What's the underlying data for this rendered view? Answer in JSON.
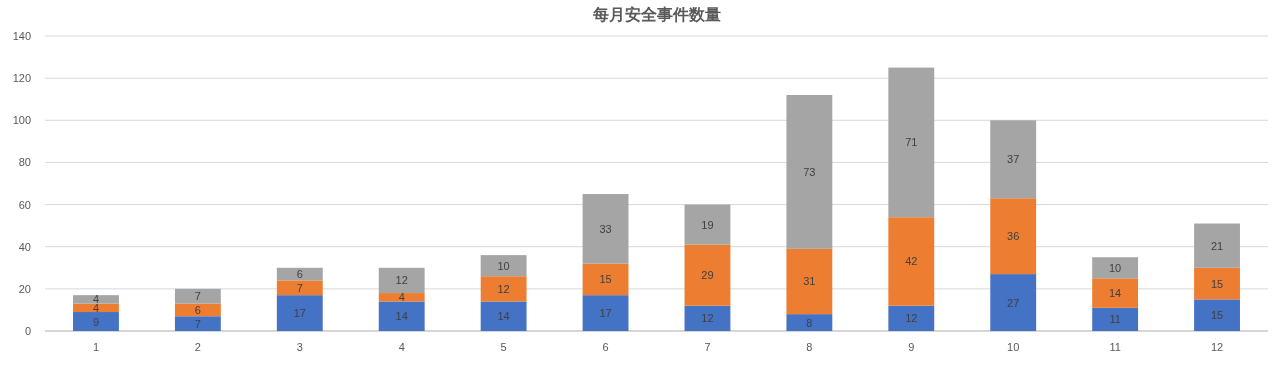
{
  "chart_data": {
    "type": "bar",
    "title": "每月安全事件数量",
    "stacked": true,
    "data_labels": true,
    "grid": "y",
    "categories": [
      "1",
      "2",
      "3",
      "4",
      "5",
      "6",
      "7",
      "8",
      "9",
      "10",
      "11",
      "12"
    ],
    "series": [
      {
        "color": "#4472c4",
        "values": [
          9,
          7,
          17,
          14,
          14,
          17,
          12,
          8,
          12,
          27,
          11,
          15
        ]
      },
      {
        "color": "#ed7d31",
        "values": [
          4,
          6,
          7,
          4,
          12,
          15,
          29,
          31,
          42,
          36,
          14,
          15
        ]
      },
      {
        "color": "#a5a5a5",
        "values": [
          4,
          7,
          6,
          12,
          10,
          33,
          19,
          73,
          71,
          37,
          10,
          21
        ]
      }
    ],
    "ylim": [
      0,
      140
    ],
    "yticks": [
      0,
      20,
      40,
      60,
      80,
      100,
      120,
      140
    ]
  }
}
